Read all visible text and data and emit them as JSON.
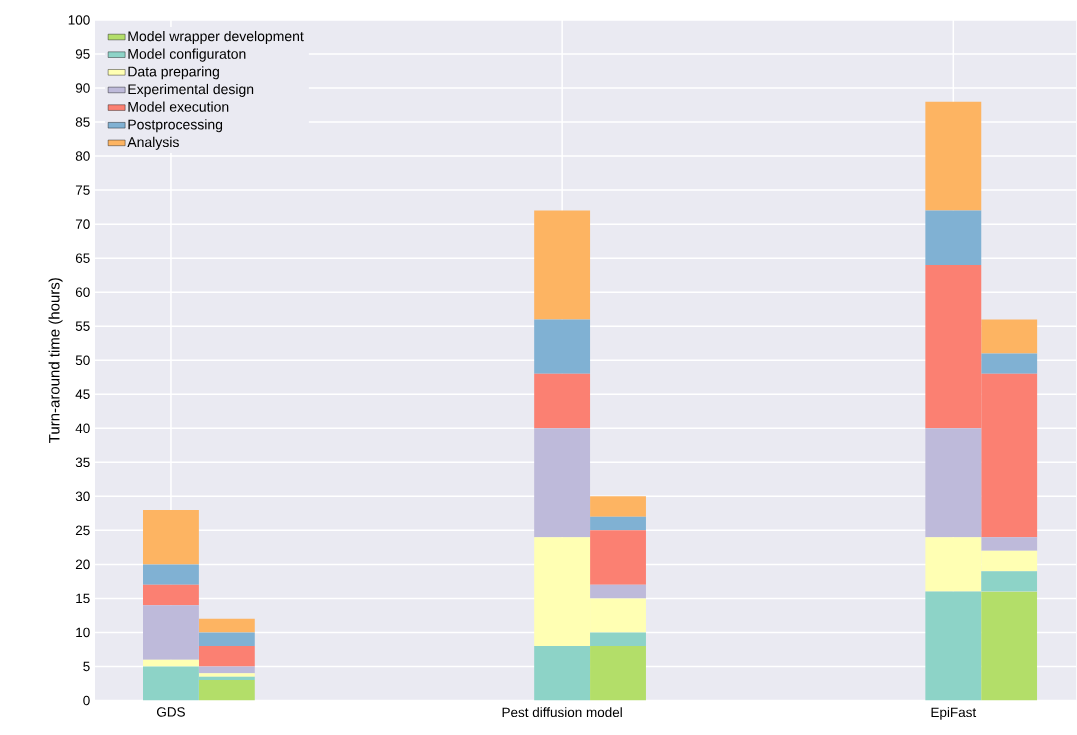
{
  "chart_data": {
    "type": "bar",
    "stacked": true,
    "ylabel": "Turn-around time (hours)",
    "categories": [
      "GDS",
      null,
      null,
      null,
      null,
      null,
      null,
      "Pest diffusion model",
      null,
      null,
      null,
      null,
      null,
      null,
      "EpiFast",
      null
    ],
    "series": [
      {
        "name": "Model wrapper development",
        "color": "#b3de69",
        "values": [
          0,
          3,
          null,
          null,
          null,
          null,
          null,
          0,
          8,
          null,
          null,
          null,
          null,
          null,
          0,
          16
        ]
      },
      {
        "name": "Model configuraton",
        "color": "#8dd3c7",
        "values": [
          5,
          0.5,
          null,
          null,
          null,
          null,
          null,
          8,
          2,
          null,
          null,
          null,
          null,
          null,
          16,
          3
        ]
      },
      {
        "name": "Data preparing",
        "color": "#ffffb3",
        "values": [
          1,
          0.5,
          null,
          null,
          null,
          null,
          null,
          16,
          5,
          null,
          null,
          null,
          null,
          null,
          8,
          3
        ]
      },
      {
        "name": "Experimental design",
        "color": "#bebada",
        "values": [
          8,
          1,
          null,
          null,
          null,
          null,
          null,
          16,
          2,
          null,
          null,
          null,
          null,
          null,
          16,
          2
        ]
      },
      {
        "name": "Model execution",
        "color": "#fb8072",
        "values": [
          3,
          3,
          null,
          null,
          null,
          null,
          null,
          8,
          8,
          null,
          null,
          null,
          null,
          null,
          24,
          24
        ]
      },
      {
        "name": "Postprocessing",
        "color": "#80b1d3",
        "values": [
          3,
          2,
          null,
          null,
          null,
          null,
          null,
          8,
          2,
          null,
          null,
          null,
          null,
          null,
          8,
          3
        ]
      },
      {
        "name": "Analysis",
        "color": "#fdb462",
        "values": [
          8,
          2,
          null,
          null,
          null,
          null,
          null,
          16,
          3,
          null,
          null,
          null,
          null,
          null,
          16,
          5
        ]
      }
    ],
    "ylim": [
      0,
      100
    ],
    "yticks": [
      0,
      5,
      10,
      15,
      20,
      25,
      30,
      35,
      40,
      45,
      50,
      55,
      60,
      65,
      70,
      75,
      80,
      85,
      90,
      95,
      100
    ],
    "grid": true,
    "legend": "top left"
  }
}
